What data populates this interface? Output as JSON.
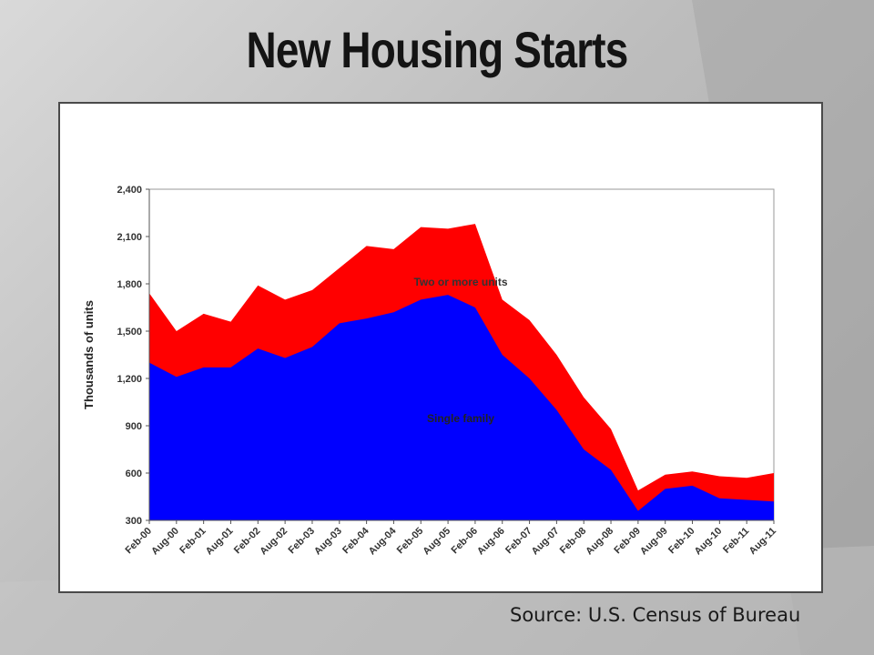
{
  "slide": {
    "title": "New Housing Starts",
    "source": "Source: U.S. Census of Bureau"
  },
  "chart_data": {
    "type": "area",
    "stacked": true,
    "title": "",
    "xlabel": "",
    "ylabel": "Thousands of units",
    "ylim": [
      300,
      2400
    ],
    "yticks": [
      300,
      600,
      900,
      1200,
      1500,
      1800,
      2100,
      2400
    ],
    "ytick_labels": [
      "300",
      "600",
      "900",
      "1,200",
      "1,500",
      "1,800",
      "2,100",
      "2,400"
    ],
    "xtick_labels": [
      "Feb-00",
      "Aug-00",
      "Feb-01",
      "Aug-01",
      "Feb-02",
      "Aug-02",
      "Feb-03",
      "Aug-03",
      "Feb-04",
      "Aug-04",
      "Feb-05",
      "Aug-05",
      "Feb-06",
      "Aug-06",
      "Feb-07",
      "Aug-07",
      "Feb-08",
      "Aug-08",
      "Feb-09",
      "Aug-09",
      "Feb-10",
      "Aug-10",
      "Feb-11",
      "Aug-11"
    ],
    "grid": false,
    "colors": {
      "single_family": "#0000ff",
      "two_or_more": "#ff0000"
    },
    "months": [
      [
        "Feb-00",
        1300,
        1740
      ],
      [
        "Aug-00",
        1210,
        1500
      ],
      [
        "Feb-01",
        1270,
        1610
      ],
      [
        "Aug-01",
        1270,
        1560
      ],
      [
        "Feb-02",
        1390,
        1790
      ],
      [
        "Aug-02",
        1330,
        1700
      ],
      [
        "Feb-03",
        1400,
        1760
      ],
      [
        "Aug-03",
        1550,
        1900
      ],
      [
        "Feb-04",
        1580,
        2040
      ],
      [
        "Aug-04",
        1620,
        2020
      ],
      [
        "Feb-05",
        1700,
        2160
      ],
      [
        "Aug-05",
        1730,
        2150
      ],
      [
        "Feb-06",
        1650,
        2180
      ],
      [
        "Aug-06",
        1350,
        1700
      ],
      [
        "Feb-07",
        1200,
        1570
      ],
      [
        "Aug-07",
        1000,
        1350
      ],
      [
        "Feb-08",
        750,
        1080
      ],
      [
        "Aug-08",
        620,
        880
      ],
      [
        "Feb-09",
        360,
        490
      ],
      [
        "Aug-09",
        500,
        590
      ],
      [
        "Feb-10",
        520,
        610
      ],
      [
        "Aug-10",
        440,
        580
      ],
      [
        "Feb-11",
        430,
        570
      ],
      [
        "Aug-11",
        420,
        600
      ]
    ],
    "series": [
      {
        "name": "Single family"
      },
      {
        "name": "Two or more units"
      }
    ],
    "annotations": [
      "Two or more units",
      "Single family"
    ]
  }
}
